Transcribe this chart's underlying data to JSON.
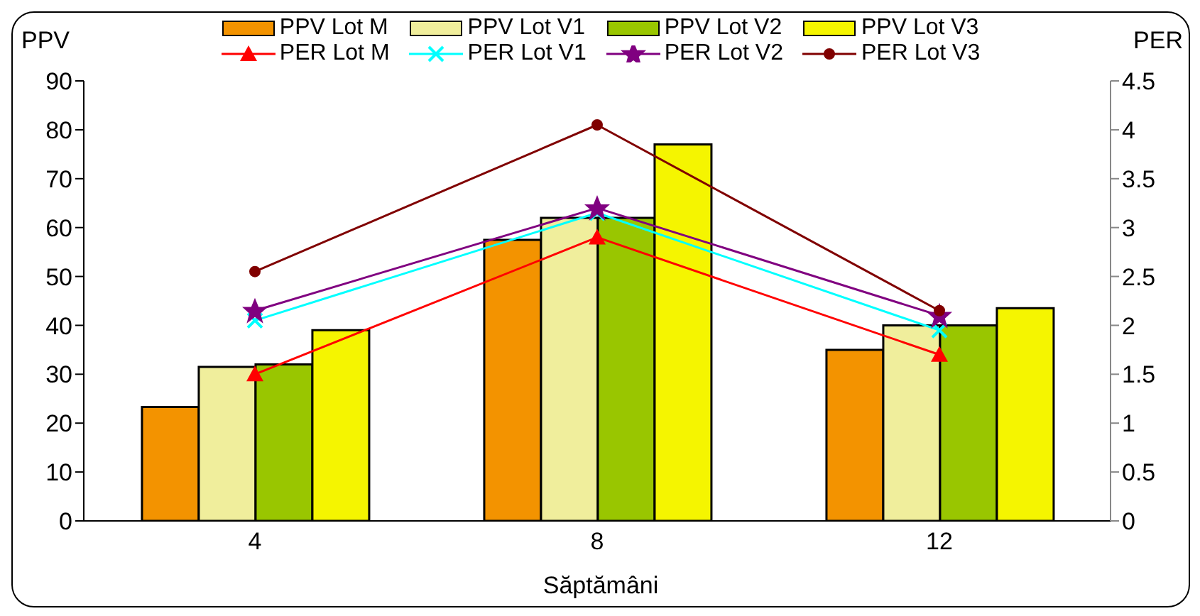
{
  "chart_data": {
    "type": "bar",
    "xlabel": "Săptămâni",
    "ylabel": "PPV",
    "y2label": "PER",
    "categories": [
      "4",
      "8",
      "12"
    ],
    "series": [
      {
        "name": "PPV Lot M",
        "color": "#f39300",
        "values": [
          23.3,
          57.5,
          35
        ]
      },
      {
        "name": "PPV Lot V1",
        "color": "#f0ee9c",
        "values": [
          31.5,
          62,
          40
        ]
      },
      {
        "name": "PPV Lot V2",
        "color": "#99c600",
        "values": [
          32,
          62,
          40
        ]
      },
      {
        "name": "PPV Lot V3",
        "color": "#f5f500",
        "values": [
          39,
          77,
          43.5
        ]
      },
      {
        "name": "PER Lot M",
        "type": "line",
        "axis": "y2",
        "marker": "triangle",
        "color": "#ff0000",
        "values": [
          1.5,
          2.9,
          1.7
        ]
      },
      {
        "name": "PER Lot V1",
        "type": "line",
        "axis": "y2",
        "marker": "cross",
        "color": "#00ffff",
        "values": [
          2.05,
          3.15,
          1.95
        ]
      },
      {
        "name": "PER Lot V2",
        "type": "line",
        "axis": "y2",
        "marker": "star",
        "color": "#800080",
        "values": [
          2.15,
          3.2,
          2.1
        ]
      },
      {
        "name": "PER Lot V3",
        "type": "line",
        "axis": "y2",
        "marker": "circle",
        "color": "#800000",
        "values": [
          2.55,
          4.05,
          2.15
        ]
      }
    ],
    "ylim": [
      0,
      90
    ],
    "yticks": [
      0,
      10,
      20,
      30,
      40,
      50,
      60,
      70,
      80,
      90
    ],
    "y2lim": [
      0,
      4.5
    ],
    "y2ticks": [
      0,
      0.5,
      1,
      1.5,
      2,
      2.5,
      3,
      3.5,
      4,
      4.5
    ],
    "legend": "top"
  }
}
